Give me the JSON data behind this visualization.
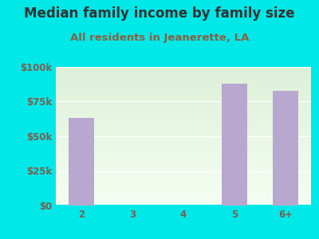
{
  "title": "Median family income by family size",
  "subtitle": "All residents in Jeanerette, LA",
  "categories": [
    "2",
    "3",
    "4",
    "5",
    "6+"
  ],
  "values": [
    63000,
    0,
    0,
    88000,
    83000
  ],
  "bar_color": "#b8a8d0",
  "background_color": "#00e8e8",
  "plot_bg_top": "#ddf0d8",
  "plot_bg_bottom": "#f5fdf2",
  "title_color": "#333333",
  "subtitle_color": "#8b6040",
  "tick_color": "#7a6050",
  "ylim": [
    0,
    100000
  ],
  "yticks": [
    0,
    25000,
    50000,
    75000,
    100000
  ],
  "ytick_labels": [
    "$0",
    "$25k",
    "$50k",
    "$75k",
    "$100k"
  ],
  "title_fontsize": 12,
  "subtitle_fontsize": 9.5,
  "tick_fontsize": 8.5
}
